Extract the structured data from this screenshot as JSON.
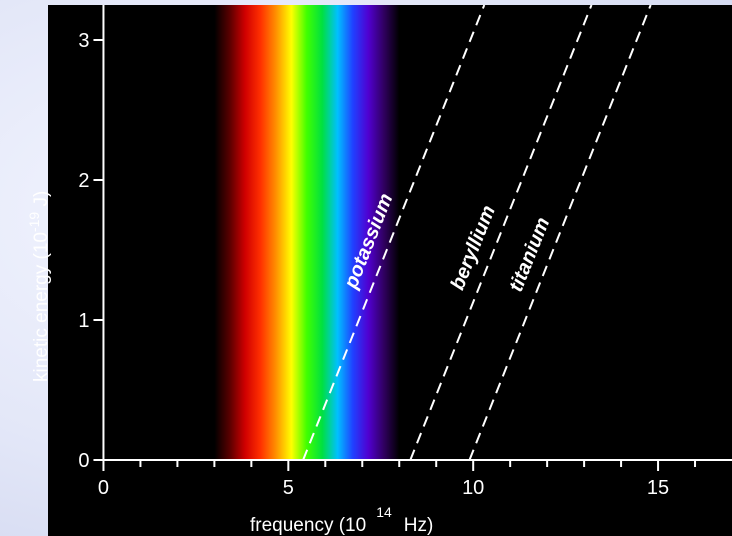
{
  "chart_data": {
    "type": "line",
    "title": "",
    "xlabel": "frequency (10",
    "xlabel_exponent": "14",
    "xlabel_unit": "Hz)",
    "ylabel": "kinetic energy (10",
    "ylabel_exponent": "-19",
    "ylabel_unit": " J)",
    "xlim": [
      -1.5,
      17
    ],
    "ylim": [
      0,
      3.25
    ],
    "x_ticks": [
      0,
      5,
      10,
      15
    ],
    "x_tick_labels": [
      "0",
      "5",
      "10",
      "15"
    ],
    "x_minor_ticks": [
      1,
      2,
      3,
      4,
      6,
      7,
      8,
      9,
      11,
      12,
      13,
      14,
      16
    ],
    "y_ticks": [
      0,
      1,
      2,
      3
    ],
    "y_tick_labels": [
      "0",
      "1",
      "2",
      "3"
    ],
    "grid": false,
    "background_color": "#000000",
    "visible_spectrum": {
      "x_range": [
        3.0,
        8.0
      ],
      "colors": [
        "#000000",
        "#5a0000",
        "#d00000",
        "#ff3000",
        "#ff9000",
        "#ffff00",
        "#40ff00",
        "#00e040",
        "#00c0ff",
        "#2040ff",
        "#5000d0",
        "#300060",
        "#000000"
      ]
    },
    "series": [
      {
        "name": "potassium",
        "threshold_frequency": 5.4,
        "x": [
          5.4,
          10.3
        ],
        "y": [
          0,
          3.25
        ]
      },
      {
        "name": "beryllium",
        "threshold_frequency": 8.3,
        "x": [
          8.3,
          13.2
        ],
        "y": [
          0,
          3.25
        ]
      },
      {
        "name": "titanium",
        "threshold_frequency": 9.9,
        "x": [
          9.9,
          14.8
        ],
        "y": [
          0,
          3.25
        ]
      }
    ]
  }
}
